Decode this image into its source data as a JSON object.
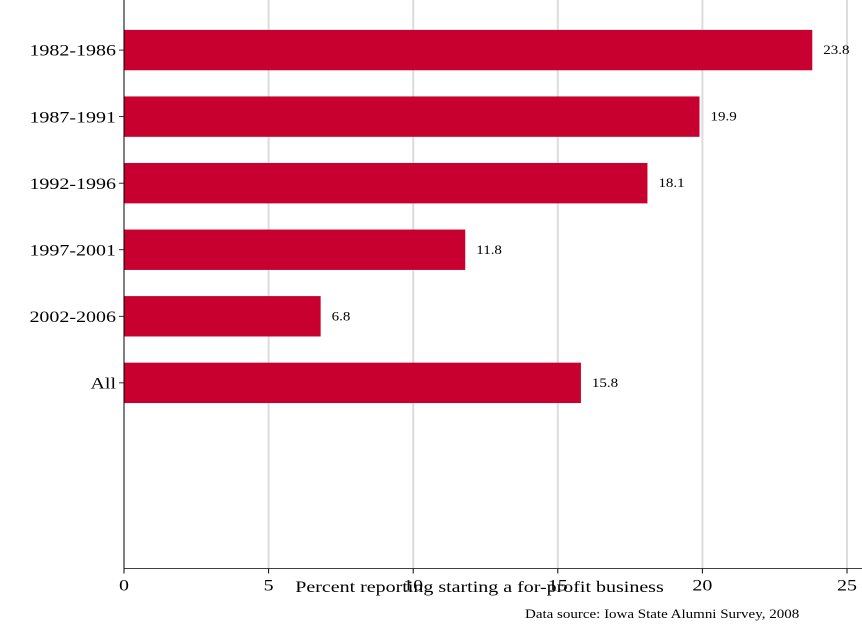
{
  "chart_data": {
    "type": "bar",
    "orientation": "horizontal",
    "categories": [
      "1982-1986",
      "1987-1991",
      "1992-1996",
      "1997-2001",
      "2002-2006",
      "All"
    ],
    "values": [
      23.8,
      19.9,
      18.1,
      11.8,
      6.8,
      15.8
    ],
    "data_labels": [
      "23.8",
      "19.9",
      "18.1",
      "11.8",
      "6.8",
      "15.8"
    ],
    "xlabel": "Percent reporting starting a for-profit business",
    "xlim": [
      0,
      25
    ],
    "xticks": [
      0,
      5,
      10,
      15,
      20,
      25
    ],
    "xtick_labels": [
      "0",
      "5",
      "10",
      "15",
      "20",
      "25"
    ],
    "grid": "vertical",
    "source_note": "Data source: Iowa State Alumni Survey, 2008",
    "colors": {
      "bar": "#c8002f",
      "grid": "#dcdcdc",
      "axis": "#000000"
    }
  }
}
